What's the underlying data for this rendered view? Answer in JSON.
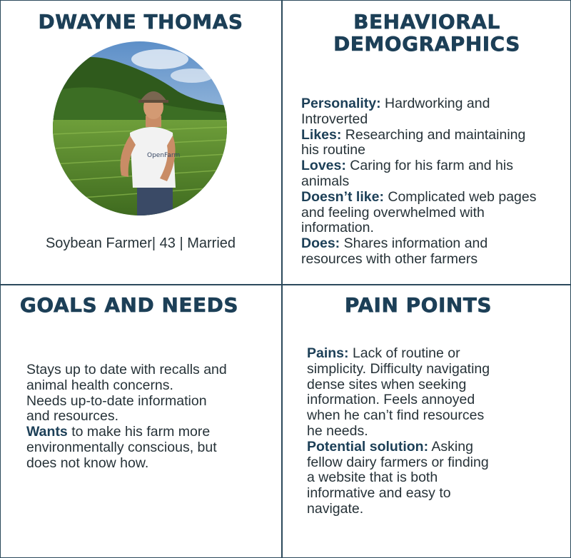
{
  "persona": {
    "name": "DWAYNE THOMAS",
    "photo_icon": "farmer-photo",
    "caption": "Soybean Farmer| 43 | Married"
  },
  "behavioral": {
    "title_line1": "BEHAVIORAL",
    "title_line2": "DEMOGRAPHICS",
    "lines": [
      {
        "label": "Personality:",
        "text": " Hardworking and"
      },
      {
        "label": "",
        "text": "Introverted"
      },
      {
        "label": "Likes:",
        "text": " Researching and maintaining"
      },
      {
        "label": "",
        "text": "his routine"
      },
      {
        "label": "Loves:",
        "text": " Caring for his farm and his"
      },
      {
        "label": "",
        "text": "animals"
      },
      {
        "label": "Doesn’t like:",
        "text": " Complicated web pages"
      },
      {
        "label": "",
        "text": "and feeling overwhelmed with"
      },
      {
        "label": "",
        "text": "information."
      },
      {
        "label": "Does:",
        "text": " Shares information and"
      },
      {
        "label": "",
        "text": "resources with other farmers"
      }
    ]
  },
  "goals": {
    "title": "GOALS AND NEEDS",
    "lines": [
      {
        "label": "",
        "text": "Stays up to date with recalls and"
      },
      {
        "label": "",
        "text": "animal health concerns."
      },
      {
        "label": "",
        "text": "Needs up-to-date  information"
      },
      {
        "label": "",
        "text": "and resources."
      },
      {
        "label": "Wants",
        "text": " to make his farm more"
      },
      {
        "label": "",
        "text": "environmentally conscious, but"
      },
      {
        "label": "",
        "text": "does not know how."
      }
    ]
  },
  "pain_points": {
    "title": "PAIN POINTS",
    "lines": [
      {
        "label": "Pains:",
        "text": " Lack of routine or"
      },
      {
        "label": "",
        "text": "simplicity. Difficulty navigating"
      },
      {
        "label": "",
        "text": "dense sites when seeking"
      },
      {
        "label": "",
        "text": "information. Feels annoyed"
      },
      {
        "label": "",
        "text": "when he can’t find resources"
      },
      {
        "label": "",
        "text": "he needs."
      },
      {
        "label": "Potential solution:",
        "text": " Asking"
      },
      {
        "label": "",
        "text": "fellow dairy farmers or finding"
      },
      {
        "label": "",
        "text": "a website that is both"
      },
      {
        "label": "",
        "text": "informative and easy to"
      },
      {
        "label": "",
        "text": "navigate."
      }
    ]
  },
  "colors": {
    "heading": "#1c3f57",
    "border": "#2c4a5c",
    "body": "#263238"
  }
}
